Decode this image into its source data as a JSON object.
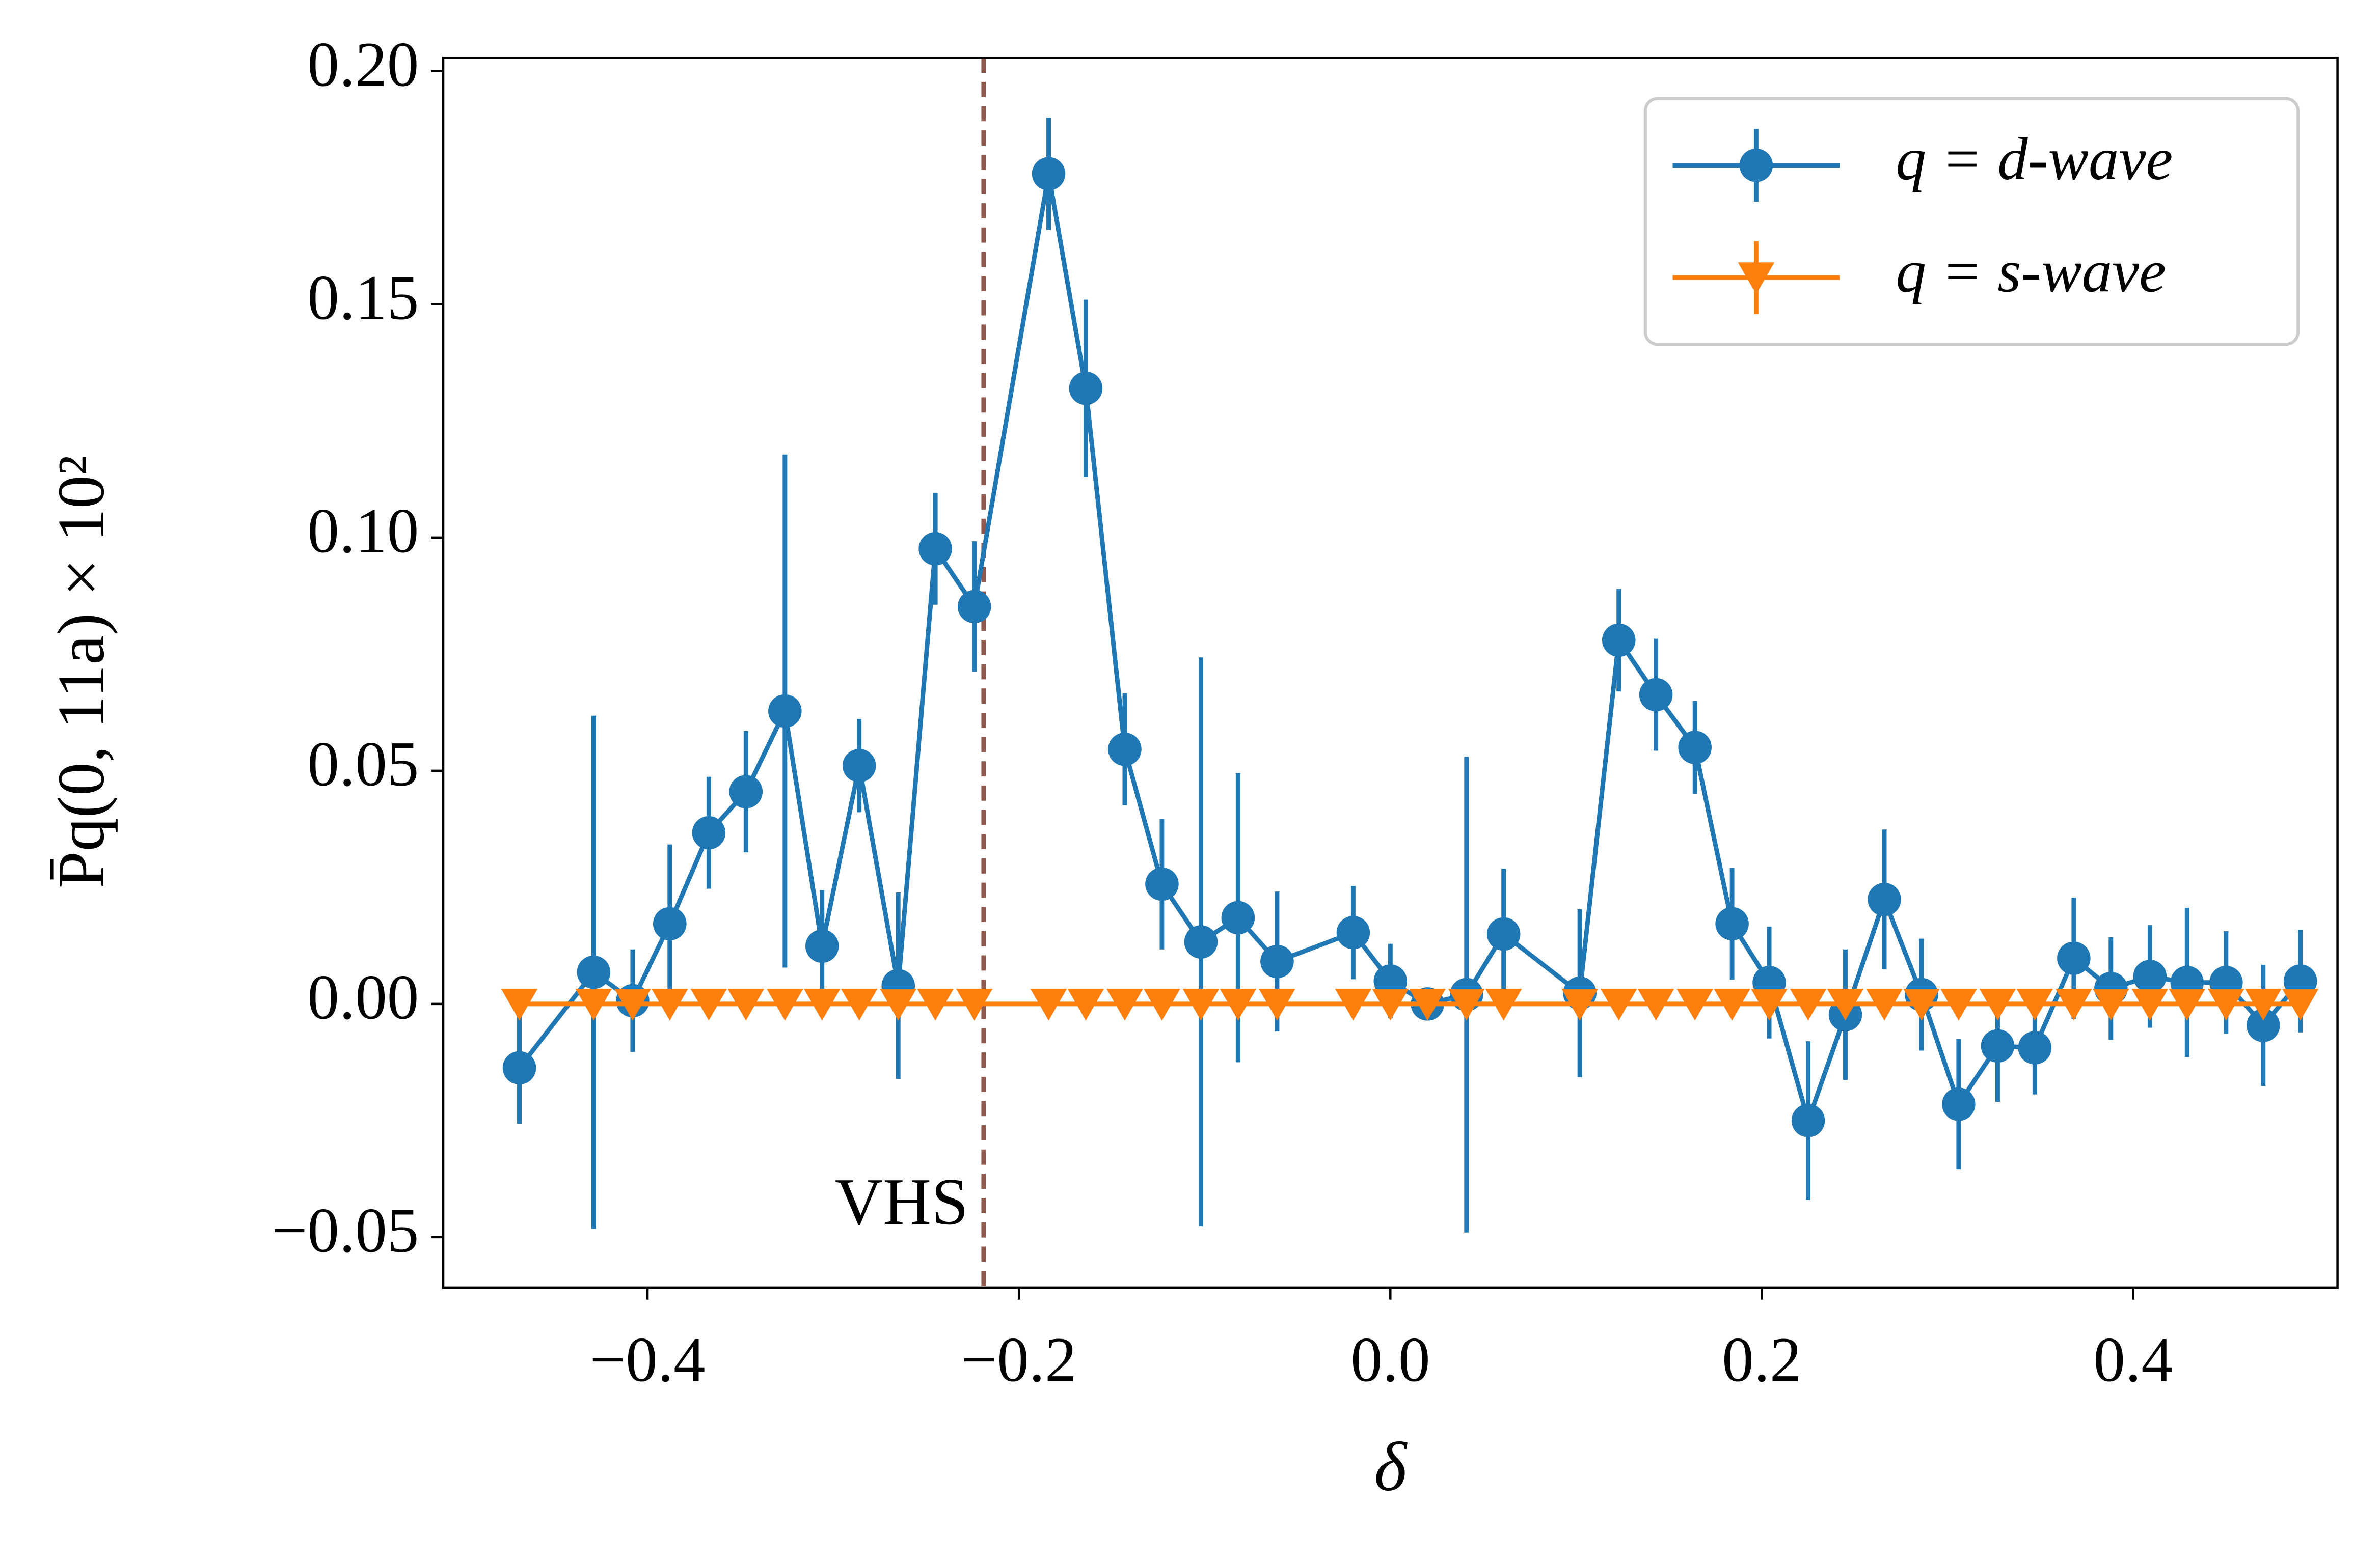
{
  "chart_data": {
    "type": "errorbar-line",
    "x_label": "δ",
    "y_label": "P̄q(0, 11a) × 10²",
    "x": [
      -0.469,
      -0.429,
      -0.408,
      -0.388,
      -0.367,
      -0.347,
      -0.326,
      -0.306,
      -0.286,
      -0.265,
      -0.245,
      -0.224,
      -0.184,
      -0.164,
      -0.143,
      -0.123,
      -0.102,
      -0.082,
      -0.061,
      -0.02,
      0.0,
      0.02,
      0.041,
      0.061,
      0.102,
      0.123,
      0.143,
      0.164,
      0.184,
      0.204,
      0.225,
      0.245,
      0.266,
      0.286,
      0.306,
      0.327,
      0.347,
      0.368,
      0.388,
      0.409,
      0.429,
      0.45,
      0.47,
      0.49
    ],
    "series": [
      {
        "name": "q = d-wave",
        "color": "#1f77b4",
        "marker": "circle",
        "values": [
          -0.0137,
          0.0068,
          0.0007,
          0.0172,
          0.0367,
          0.0455,
          0.0628,
          0.0124,
          0.0511,
          0.0039,
          0.0976,
          0.0852,
          0.178,
          0.132,
          0.0546,
          0.0257,
          0.0133,
          0.0185,
          0.0091,
          0.0153,
          0.0049,
          0.0,
          0.002,
          0.015,
          0.0023,
          0.078,
          0.0663,
          0.055,
          0.0172,
          0.0046,
          -0.025,
          -0.0023,
          0.0224,
          0.002,
          -0.0215,
          -0.009,
          -0.0094,
          0.0098,
          0.0033,
          0.0059,
          0.0046,
          0.0046,
          -0.0046,
          0.0049
        ],
        "errors": [
          0.012,
          0.055,
          0.011,
          0.017,
          0.012,
          0.013,
          0.055,
          0.012,
          0.01,
          0.02,
          0.012,
          0.014,
          0.012,
          0.019,
          0.012,
          0.014,
          0.061,
          0.031,
          0.015,
          0.01,
          0.008,
          0.003,
          0.051,
          0.014,
          0.018,
          0.011,
          0.012,
          0.01,
          0.012,
          0.012,
          0.017,
          0.014,
          0.015,
          0.012,
          0.014,
          0.012,
          0.01,
          0.013,
          0.011,
          0.011,
          0.016,
          0.011,
          0.013,
          0.011
        ]
      },
      {
        "name": "q = s-wave",
        "color": "#ff7f0e",
        "marker": "triangle-down",
        "values": [
          0,
          0,
          0,
          0,
          0,
          0,
          0,
          0,
          0,
          0,
          0,
          0,
          0,
          0,
          0,
          0,
          0,
          0,
          0,
          0,
          0,
          0,
          0,
          0,
          0,
          0,
          0,
          0,
          0,
          0,
          0,
          0,
          0,
          0,
          0,
          0,
          0,
          0,
          0,
          0,
          0,
          0,
          0,
          0
        ]
      }
    ],
    "xlim": [
      -0.51,
      0.51
    ],
    "ylim": [
      -0.0608,
      0.2029
    ],
    "xticks": [
      {
        "value": -0.4,
        "label": "−0.4"
      },
      {
        "value": -0.2,
        "label": "−0.2"
      },
      {
        "value": 0,
        "label": "0.0"
      },
      {
        "value": 0.2,
        "label": "0.2"
      },
      {
        "value": 0.4,
        "label": "0.4"
      }
    ],
    "yticks": [
      {
        "value": -0.05,
        "label": "−0.05"
      },
      {
        "value": 0,
        "label": "0.00"
      },
      {
        "value": 0.05,
        "label": "0.05"
      },
      {
        "value": 0.1,
        "label": "0.10"
      },
      {
        "value": 0.15,
        "label": "0.15"
      },
      {
        "value": 0.2,
        "label": "0.20"
      }
    ],
    "vline": {
      "x": -0.219,
      "label": "VHS",
      "color": "#8c564b"
    },
    "legend": "upper right",
    "grid": false
  }
}
